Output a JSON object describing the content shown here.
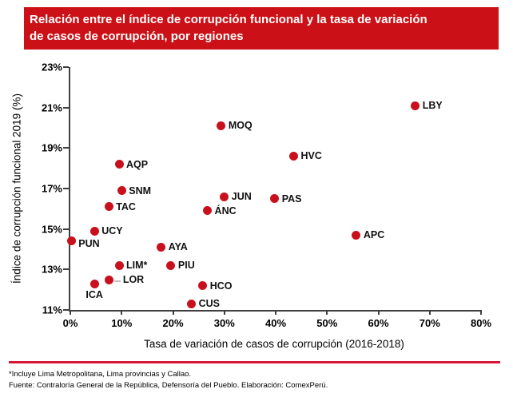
{
  "title_lines": [
    "Relación entre el índice de corrupción funcional y la tasa de variación",
    "de casos de corrupción, por regiones"
  ],
  "colors": {
    "banner": "#CB1117",
    "dot": "#C9111D",
    "footer_line": "#D5173B",
    "axis": "#3F3F3F"
  },
  "chart_data": {
    "type": "scatter",
    "title": "Relación entre el índice de corrupción funcional y la tasa de variación de casos de corrupción, por regiones",
    "xlabel": "Tasa de variación de casos de corrupción (2016-2018)",
    "ylabel": "Índice de corrupción funcional 2019 (%)",
    "xlim": [
      0,
      80
    ],
    "ylim": [
      11,
      23
    ],
    "xtick_step": 10,
    "ytick_step": 2,
    "tick_suffix": "%",
    "grid": false,
    "legend": "none",
    "points": [
      {
        "label": "LBY",
        "x": 67.2,
        "y": 21.1,
        "label_side": "right"
      },
      {
        "label": "MOQ",
        "x": 29.4,
        "y": 20.1,
        "label_side": "right"
      },
      {
        "label": "HVC",
        "x": 43.5,
        "y": 18.6,
        "label_side": "right"
      },
      {
        "label": "AQP",
        "x": 9.5,
        "y": 18.2,
        "label_side": "right"
      },
      {
        "label": "SNM",
        "x": 10.0,
        "y": 16.9,
        "label_side": "right"
      },
      {
        "label": "JUN",
        "x": 30.0,
        "y": 16.6,
        "label_side": "right"
      },
      {
        "label": "PAS",
        "x": 39.8,
        "y": 16.5,
        "label_side": "right"
      },
      {
        "label": "TAC",
        "x": 7.5,
        "y": 16.1,
        "label_side": "right"
      },
      {
        "label": "ÁNC",
        "x": 26.7,
        "y": 15.9,
        "label_side": "right"
      },
      {
        "label": "UCY",
        "x": 4.7,
        "y": 14.9,
        "label_side": "right"
      },
      {
        "label": "PUN",
        "x": 0.2,
        "y": 14.4,
        "label_side": "right-low"
      },
      {
        "label": "APC",
        "x": 55.7,
        "y": 14.7,
        "label_side": "right"
      },
      {
        "label": "AYA",
        "x": 17.7,
        "y": 14.1,
        "label_side": "right"
      },
      {
        "label": "LIM*",
        "x": 9.5,
        "y": 13.2,
        "label_side": "right"
      },
      {
        "label": "PIU",
        "x": 19.6,
        "y": 13.2,
        "label_side": "right"
      },
      {
        "label": "LOR",
        "x": 7.6,
        "y": 12.5,
        "label_side": "right",
        "leader": true
      },
      {
        "label": "ICA",
        "x": 4.7,
        "y": 12.3,
        "label_side": "below"
      },
      {
        "label": "HCO",
        "x": 25.8,
        "y": 12.2,
        "label_side": "right"
      },
      {
        "label": "CUS",
        "x": 23.6,
        "y": 11.3,
        "label_side": "right"
      }
    ]
  },
  "footer": {
    "note": "*Incluye Lima Metropolitana, Lima provincias y Callao.",
    "source": "Fuente: Contraloría General de la República, Defensoría del Pueblo. Elaboración: ComexPerú."
  }
}
